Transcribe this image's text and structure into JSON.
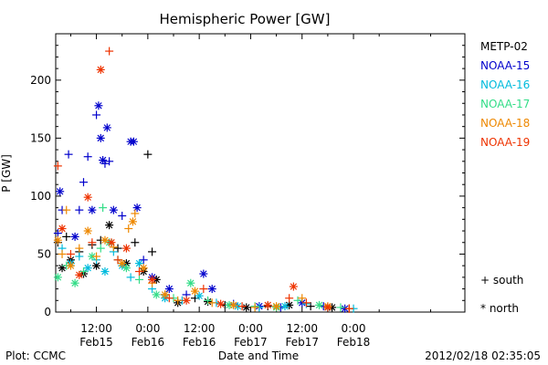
{
  "chart_data": {
    "type": "scatter",
    "title": "Hemispheric Power [GW]",
    "ylabel": "P [GW]",
    "xlabel": "Date and Time",
    "ylim": [
      0,
      240
    ],
    "yticks": [
      0,
      50,
      100,
      150,
      200
    ],
    "x_unit": "hours since 2012-02-14 00:00 UT",
    "xlim": [
      2.5,
      98
    ],
    "xticks": [
      {
        "x": 12,
        "time": "12:00",
        "date": "Feb15"
      },
      {
        "x": 24,
        "time": "0:00",
        "date": "Feb16"
      },
      {
        "x": 36,
        "time": "12:00",
        "date": "Feb16"
      },
      {
        "x": 48,
        "time": "0:00",
        "date": "Feb17"
      },
      {
        "x": 60,
        "time": "12:00",
        "date": "Feb17"
      },
      {
        "x": 72,
        "time": "0:00",
        "date": "Feb18"
      }
    ],
    "markers": {
      "south": "+",
      "north": "*"
    },
    "marker_legend": [
      "+ south",
      "* north"
    ],
    "series": [
      {
        "name": "METP-02",
        "color": "#000000",
        "points": [
          {
            "x": 3,
            "y": 60,
            "h": "south"
          },
          {
            "x": 4,
            "y": 38,
            "h": "north"
          },
          {
            "x": 5,
            "y": 65,
            "h": "south"
          },
          {
            "x": 6,
            "y": 45,
            "h": "north"
          },
          {
            "x": 8,
            "y": 52,
            "h": "south"
          },
          {
            "x": 9,
            "y": 33,
            "h": "north"
          },
          {
            "x": 11,
            "y": 58,
            "h": "south"
          },
          {
            "x": 12,
            "y": 40,
            "h": "north"
          },
          {
            "x": 13,
            "y": 62,
            "h": "south"
          },
          {
            "x": 15,
            "y": 75,
            "h": "north"
          },
          {
            "x": 17,
            "y": 55,
            "h": "south"
          },
          {
            "x": 19,
            "y": 42,
            "h": "north"
          },
          {
            "x": 21,
            "y": 60,
            "h": "south"
          },
          {
            "x": 23,
            "y": 35,
            "h": "north"
          },
          {
            "x": 24,
            "y": 136,
            "h": "south"
          },
          {
            "x": 25,
            "y": 52,
            "h": "south"
          },
          {
            "x": 26,
            "y": 28,
            "h": "north"
          },
          {
            "x": 28,
            "y": 15,
            "h": "south"
          },
          {
            "x": 31,
            "y": 8,
            "h": "north"
          },
          {
            "x": 35,
            "y": 12,
            "h": "south"
          },
          {
            "x": 38,
            "y": 9,
            "h": "north"
          },
          {
            "x": 42,
            "y": 6,
            "h": "south"
          },
          {
            "x": 47,
            "y": 4,
            "h": "north"
          },
          {
            "x": 52,
            "y": 5,
            "h": "south"
          },
          {
            "x": 57,
            "y": 6,
            "h": "north"
          },
          {
            "x": 62,
            "y": 5,
            "h": "south"
          },
          {
            "x": 67,
            "y": 4,
            "h": "north"
          },
          {
            "x": 71,
            "y": 3,
            "h": "south"
          }
        ]
      },
      {
        "name": "NOAA-15",
        "color": "#0000cc",
        "points": [
          {
            "x": 3,
            "y": 68,
            "h": "south"
          },
          {
            "x": 3.5,
            "y": 104,
            "h": "north"
          },
          {
            "x": 4,
            "y": 88,
            "h": "south"
          },
          {
            "x": 5.5,
            "y": 136,
            "h": "south"
          },
          {
            "x": 7,
            "y": 65,
            "h": "north"
          },
          {
            "x": 8,
            "y": 88,
            "h": "south"
          },
          {
            "x": 9,
            "y": 112,
            "h": "south"
          },
          {
            "x": 10,
            "y": 134,
            "h": "south"
          },
          {
            "x": 11,
            "y": 88,
            "h": "north"
          },
          {
            "x": 12,
            "y": 170,
            "h": "south"
          },
          {
            "x": 12.5,
            "y": 178,
            "h": "north"
          },
          {
            "x": 13,
            "y": 150,
            "h": "north"
          },
          {
            "x": 13.5,
            "y": 131,
            "h": "north"
          },
          {
            "x": 14,
            "y": 128,
            "h": "south"
          },
          {
            "x": 14.5,
            "y": 159,
            "h": "north"
          },
          {
            "x": 15,
            "y": 130,
            "h": "south"
          },
          {
            "x": 16,
            "y": 88,
            "h": "north"
          },
          {
            "x": 18,
            "y": 83,
            "h": "south"
          },
          {
            "x": 20,
            "y": 147,
            "h": "north"
          },
          {
            "x": 20.7,
            "y": 147,
            "h": "north"
          },
          {
            "x": 21.5,
            "y": 90,
            "h": "north"
          },
          {
            "x": 23,
            "y": 45,
            "h": "south"
          },
          {
            "x": 25,
            "y": 30,
            "h": "north"
          },
          {
            "x": 29,
            "y": 20,
            "h": "north"
          },
          {
            "x": 33,
            "y": 15,
            "h": "south"
          },
          {
            "x": 37,
            "y": 33,
            "h": "north"
          },
          {
            "x": 39,
            "y": 20,
            "h": "north"
          },
          {
            "x": 44,
            "y": 7,
            "h": "south"
          },
          {
            "x": 50,
            "y": 5,
            "h": "north"
          },
          {
            "x": 55,
            "y": 4,
            "h": "south"
          },
          {
            "x": 60,
            "y": 8,
            "h": "north"
          },
          {
            "x": 65,
            "y": 5,
            "h": "south"
          },
          {
            "x": 70,
            "y": 3,
            "h": "north"
          }
        ]
      },
      {
        "name": "NOAA-16",
        "color": "#00bbdd",
        "points": [
          {
            "x": 4,
            "y": 55,
            "h": "south"
          },
          {
            "x": 6,
            "y": 42,
            "h": "north"
          },
          {
            "x": 8,
            "y": 48,
            "h": "south"
          },
          {
            "x": 10,
            "y": 38,
            "h": "north"
          },
          {
            "x": 12,
            "y": 45,
            "h": "south"
          },
          {
            "x": 14,
            "y": 35,
            "h": "north"
          },
          {
            "x": 16,
            "y": 52,
            "h": "south"
          },
          {
            "x": 18,
            "y": 40,
            "h": "north"
          },
          {
            "x": 20,
            "y": 30,
            "h": "south"
          },
          {
            "x": 22,
            "y": 42,
            "h": "north"
          },
          {
            "x": 25,
            "y": 20,
            "h": "south"
          },
          {
            "x": 28,
            "y": 12,
            "h": "north"
          },
          {
            "x": 32,
            "y": 10,
            "h": "south"
          },
          {
            "x": 36,
            "y": 14,
            "h": "north"
          },
          {
            "x": 40,
            "y": 8,
            "h": "south"
          },
          {
            "x": 45,
            "y": 5,
            "h": "north"
          },
          {
            "x": 50,
            "y": 4,
            "h": "south"
          },
          {
            "x": 56,
            "y": 5,
            "h": "north"
          },
          {
            "x": 61,
            "y": 7,
            "h": "south"
          },
          {
            "x": 66,
            "y": 4,
            "h": "north"
          },
          {
            "x": 72,
            "y": 3,
            "h": "south"
          }
        ]
      },
      {
        "name": "NOAA-17",
        "color": "#33dd88",
        "points": [
          {
            "x": 3,
            "y": 30,
            "h": "north"
          },
          {
            "x": 5,
            "y": 40,
            "h": "south"
          },
          {
            "x": 7,
            "y": 25,
            "h": "north"
          },
          {
            "x": 9,
            "y": 35,
            "h": "south"
          },
          {
            "x": 11,
            "y": 48,
            "h": "north"
          },
          {
            "x": 13,
            "y": 55,
            "h": "south"
          },
          {
            "x": 13.5,
            "y": 90,
            "h": "south"
          },
          {
            "x": 15,
            "y": 60,
            "h": "north"
          },
          {
            "x": 17,
            "y": 45,
            "h": "south"
          },
          {
            "x": 19,
            "y": 38,
            "h": "north"
          },
          {
            "x": 22,
            "y": 28,
            "h": "south"
          },
          {
            "x": 26,
            "y": 15,
            "h": "north"
          },
          {
            "x": 30,
            "y": 12,
            "h": "south"
          },
          {
            "x": 34,
            "y": 25,
            "h": "north"
          },
          {
            "x": 38,
            "y": 10,
            "h": "south"
          },
          {
            "x": 43,
            "y": 6,
            "h": "north"
          },
          {
            "x": 49,
            "y": 5,
            "h": "south"
          },
          {
            "x": 54,
            "y": 4,
            "h": "north"
          },
          {
            "x": 59,
            "y": 10,
            "h": "south"
          },
          {
            "x": 64,
            "y": 6,
            "h": "north"
          },
          {
            "x": 69,
            "y": 4,
            "h": "south"
          }
        ]
      },
      {
        "name": "NOAA-18",
        "color": "#ee8800",
        "points": [
          {
            "x": 3,
            "y": 62,
            "h": "north"
          },
          {
            "x": 4,
            "y": 50,
            "h": "south"
          },
          {
            "x": 5,
            "y": 88,
            "h": "south"
          },
          {
            "x": 6,
            "y": 40,
            "h": "north"
          },
          {
            "x": 8,
            "y": 55,
            "h": "south"
          },
          {
            "x": 10,
            "y": 70,
            "h": "north"
          },
          {
            "x": 12,
            "y": 48,
            "h": "south"
          },
          {
            "x": 14,
            "y": 62,
            "h": "north"
          },
          {
            "x": 16,
            "y": 56,
            "h": "south"
          },
          {
            "x": 18,
            "y": 42,
            "h": "north"
          },
          {
            "x": 19.5,
            "y": 72,
            "h": "south"
          },
          {
            "x": 20.5,
            "y": 78,
            "h": "north"
          },
          {
            "x": 21,
            "y": 85,
            "h": "south"
          },
          {
            "x": 23,
            "y": 38,
            "h": "north"
          },
          {
            "x": 25,
            "y": 25,
            "h": "south"
          },
          {
            "x": 28,
            "y": 15,
            "h": "north"
          },
          {
            "x": 31,
            "y": 10,
            "h": "south"
          },
          {
            "x": 35,
            "y": 18,
            "h": "north"
          },
          {
            "x": 39,
            "y": 8,
            "h": "south"
          },
          {
            "x": 44,
            "y": 6,
            "h": "north"
          },
          {
            "x": 49,
            "y": 4,
            "h": "south"
          },
          {
            "x": 54,
            "y": 5,
            "h": "north"
          },
          {
            "x": 60,
            "y": 12,
            "h": "south"
          },
          {
            "x": 66,
            "y": 5,
            "h": "north"
          },
          {
            "x": 71,
            "y": 3,
            "h": "south"
          }
        ]
      },
      {
        "name": "NOAA-19",
        "color": "#ee3300",
        "points": [
          {
            "x": 3,
            "y": 126,
            "h": "south"
          },
          {
            "x": 4,
            "y": 72,
            "h": "north"
          },
          {
            "x": 6,
            "y": 50,
            "h": "south"
          },
          {
            "x": 8,
            "y": 32,
            "h": "north"
          },
          {
            "x": 10,
            "y": 99,
            "h": "north"
          },
          {
            "x": 11,
            "y": 60,
            "h": "south"
          },
          {
            "x": 13,
            "y": 209,
            "h": "north"
          },
          {
            "x": 15,
            "y": 225,
            "h": "south"
          },
          {
            "x": 15.5,
            "y": 60,
            "h": "north"
          },
          {
            "x": 17,
            "y": 45,
            "h": "south"
          },
          {
            "x": 19,
            "y": 55,
            "h": "north"
          },
          {
            "x": 22,
            "y": 35,
            "h": "south"
          },
          {
            "x": 25,
            "y": 28,
            "h": "north"
          },
          {
            "x": 29,
            "y": 12,
            "h": "south"
          },
          {
            "x": 33,
            "y": 10,
            "h": "north"
          },
          {
            "x": 37,
            "y": 20,
            "h": "south"
          },
          {
            "x": 41,
            "y": 7,
            "h": "north"
          },
          {
            "x": 46,
            "y": 5,
            "h": "south"
          },
          {
            "x": 52,
            "y": 6,
            "h": "north"
          },
          {
            "x": 57,
            "y": 12,
            "h": "south"
          },
          {
            "x": 58,
            "y": 22,
            "h": "north"
          },
          {
            "x": 61,
            "y": 8,
            "h": "south"
          },
          {
            "x": 66,
            "y": 4,
            "h": "north"
          },
          {
            "x": 71,
            "y": 3,
            "h": "south"
          }
        ]
      }
    ]
  },
  "footer": {
    "left": "Plot: CCMC",
    "right": "2012/02/18 02:35:05"
  }
}
